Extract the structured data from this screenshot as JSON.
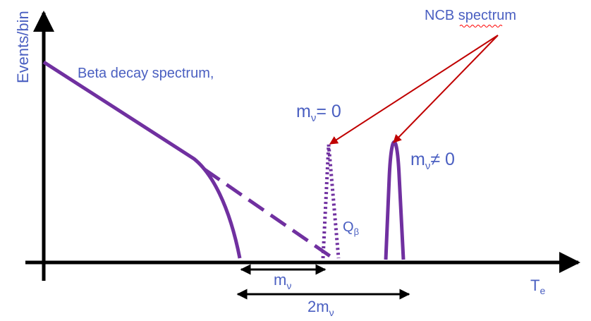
{
  "labels": {
    "y_axis": "Events/bin",
    "x_axis_main": "T",
    "x_axis_sub": "e",
    "beta_spectrum": "Beta decay spectrum,",
    "ncb_spectrum": "NCB spectrum",
    "m_nu_zero_main": "m",
    "m_nu_zero_sub": "ν",
    "m_nu_zero_rest": "= 0",
    "m_nu_nonzero_main": "m",
    "m_nu_nonzero_sub": "ν",
    "m_nu_nonzero_rest": "≠ 0",
    "q_beta_main": "Q",
    "q_beta_sub": "β",
    "m_nu_gap_main": "m",
    "m_nu_gap_sub": "ν",
    "two_m_nu_gap_main": "2m",
    "two_m_nu_gap_sub": "ν"
  },
  "colors": {
    "axis": "#000000",
    "curve": "#7030a0",
    "text": "#4a5fc1",
    "arrow": "#c00000",
    "squiggle": "#ff0000"
  }
}
